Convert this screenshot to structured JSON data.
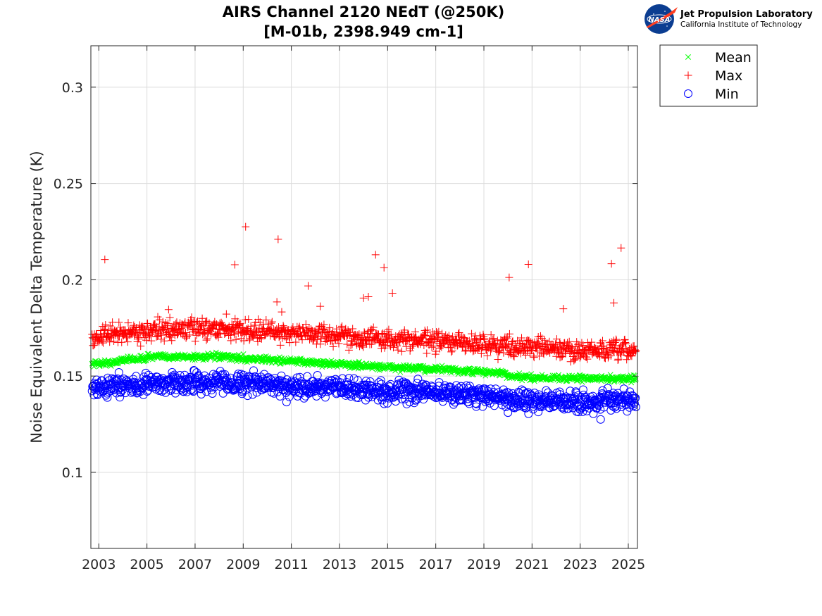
{
  "title": {
    "line1": "AIRS Channel 2120 NEdT (@250K)",
    "line2": "[M-01b, 2398.949 cm-1]"
  },
  "logo": {
    "nasa": "NASA",
    "name": "Jet Propulsion Laboratory",
    "subtitle": "California Institute of Technology"
  },
  "colors": {
    "mean": "#00ff00",
    "max": "#ff0000",
    "min": "#0000ff",
    "grid": "#dcdcdc",
    "axis": "#262626"
  },
  "chart_data": {
    "type": "scatter",
    "title": "AIRS Channel 2120 NEdT (@250K) [M-01b, 2398.949 cm-1]",
    "xlabel": "",
    "ylabel": "Noise Equivalent Delta Temperature (K)",
    "xlim": [
      2002.67,
      2025.38
    ],
    "ylim": [
      0.0605,
      0.3215
    ],
    "xticks": [
      "2003",
      "2005",
      "2007",
      "2009",
      "2011",
      "2013",
      "2015",
      "2017",
      "2019",
      "2021",
      "2023",
      "2025"
    ],
    "xtick_values": [
      2003,
      2005,
      2007,
      2009,
      2011,
      2013,
      2015,
      2017,
      2019,
      2021,
      2023,
      2025
    ],
    "yticks": [
      "0.1",
      "0.15",
      "0.2",
      "0.25",
      "0.3"
    ],
    "ytick_values": [
      0.1,
      0.15,
      0.2,
      0.25,
      0.3
    ],
    "grid": true,
    "legend_position": "outside-top-right",
    "series": [
      {
        "name": "Mean",
        "marker": "x",
        "trend": {
          "x": [
            2002.7,
            2003.8,
            2003.81,
            2004.9,
            2005.0,
            2008.0,
            2010.0,
            2012.0,
            2014.0,
            2016.0,
            2017.0,
            2018.0,
            2019.9,
            2020.0,
            2022.0,
            2025.3
          ],
          "y": [
            0.1565,
            0.157,
            0.1585,
            0.159,
            0.16,
            0.16,
            0.1585,
            0.157,
            0.1553,
            0.154,
            0.1537,
            0.1527,
            0.1515,
            0.1495,
            0.149,
            0.1485
          ]
        },
        "noise": 0.0008
      },
      {
        "name": "Max",
        "marker": "+",
        "trend": {
          "x": [
            2002.7,
            2004.0,
            2006.0,
            2007.5,
            2009.0,
            2011.0,
            2013.0,
            2015.0,
            2017.0,
            2019.0,
            2021.0,
            2023.0,
            2025.3
          ],
          "y": [
            0.17,
            0.1725,
            0.174,
            0.175,
            0.174,
            0.1725,
            0.171,
            0.169,
            0.168,
            0.1665,
            0.165,
            0.163,
            0.163
          ]
        },
        "noise": 0.0025,
        "outliers": {
          "x": [
            2003.25,
            2008.65,
            2009.1,
            2010.45,
            2011.7,
            2012.2,
            2014.0,
            2014.2,
            2014.5,
            2014.85,
            2015.2,
            2020.05,
            2020.85,
            2022.3,
            2024.3,
            2024.4,
            2024.7,
            2010.4,
            2010.6,
            2005.9,
            2008.3
          ],
          "y": [
            0.2105,
            0.2078,
            0.2275,
            0.221,
            0.1968,
            0.1862,
            0.1905,
            0.1912,
            0.213,
            0.2063,
            0.193,
            0.2012,
            0.208,
            0.1849,
            0.2083,
            0.188,
            0.2165,
            0.1885,
            0.1833,
            0.1845,
            0.1822
          ]
        }
      },
      {
        "name": "Min",
        "marker": "o",
        "trend": {
          "x": [
            2002.7,
            2004.0,
            2006.0,
            2007.5,
            2009.0,
            2011.0,
            2013.0,
            2015.0,
            2017.0,
            2019.0,
            2021.0,
            2023.0,
            2025.3
          ],
          "y": [
            0.144,
            0.145,
            0.1465,
            0.147,
            0.1465,
            0.145,
            0.1435,
            0.142,
            0.1415,
            0.14,
            0.137,
            0.1365,
            0.137
          ]
        },
        "noise": 0.0025,
        "outliers": {
          "x": [
            2023.85,
            2010.8,
            2020.0
          ],
          "y": [
            0.1275,
            0.1365,
            0.131
          ]
        }
      }
    ]
  }
}
